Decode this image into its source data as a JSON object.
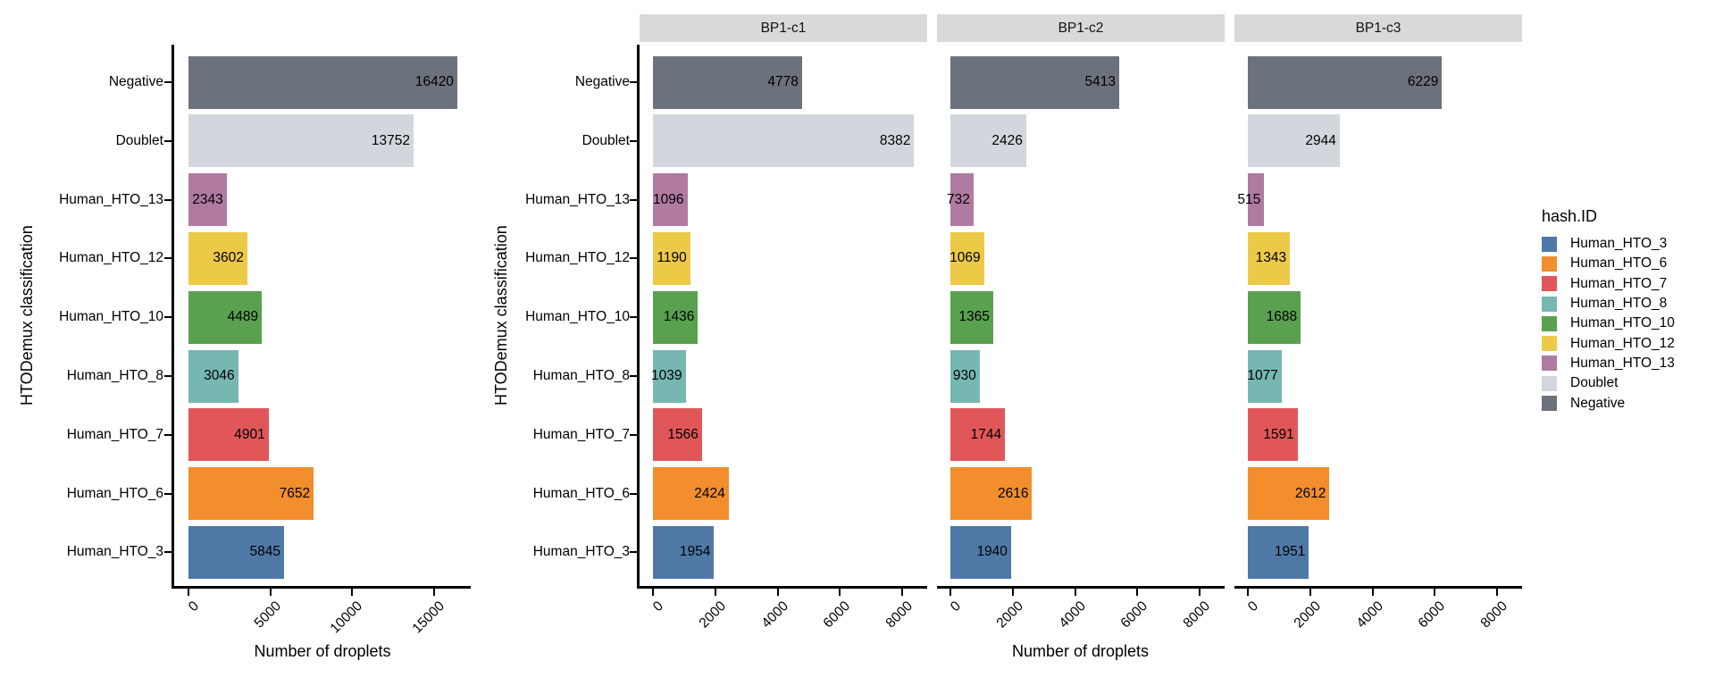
{
  "figure_bg": "#FFFFFF",
  "strip_bg": "#D9D9D9",
  "axis_color": "#000000",
  "text_color": "#000000",
  "palette": {
    "Human_HTO_3": "#4E79A7",
    "Human_HTO_6": "#F28E2B",
    "Human_HTO_7": "#E15759",
    "Human_HTO_8": "#76B7B2",
    "Human_HTO_10": "#59A14F",
    "Human_HTO_12": "#EDC948",
    "Human_HTO_13": "#B07AA1",
    "Doublet": "#D2D7DE",
    "Negative": "#6C727C"
  },
  "chart_data": [
    {
      "type": "bar",
      "orientation": "horizontal",
      "title": "",
      "xlabel": "Number of droplets",
      "ylabel": "HTODemux classification",
      "categories_top_to_bottom": [
        "Negative",
        "Doublet",
        "Human_HTO_13",
        "Human_HTO_12",
        "Human_HTO_10",
        "Human_HTO_8",
        "Human_HTO_7",
        "Human_HTO_6",
        "Human_HTO_3"
      ],
      "values": [
        16420,
        13752,
        2343,
        3602,
        4489,
        3046,
        4901,
        7652,
        5845
      ],
      "bar_labels": [
        "16420",
        "13752",
        "2343",
        "3602",
        "4489",
        "3046",
        "4901",
        "7652",
        "5845"
      ],
      "xticks": [
        0,
        5000,
        10000,
        15000
      ],
      "xlim": [
        -862,
        17241
      ],
      "grid": false,
      "legend_position": "none"
    },
    {
      "type": "bar",
      "orientation": "horizontal",
      "faceted": true,
      "title": "",
      "xlabel": "Number of droplets",
      "ylabel": "HTODemux classification",
      "categories_top_to_bottom": [
        "Negative",
        "Doublet",
        "Human_HTO_13",
        "Human_HTO_12",
        "Human_HTO_10",
        "Human_HTO_8",
        "Human_HTO_7",
        "Human_HTO_6",
        "Human_HTO_3"
      ],
      "facets": [
        {
          "label": "BP1-c1",
          "values": [
            4778,
            8382,
            1096,
            1190,
            1436,
            1039,
            1566,
            2424,
            1954
          ]
        },
        {
          "label": "BP1-c2",
          "values": [
            5413,
            2426,
            732,
            1069,
            1365,
            930,
            1744,
            2616,
            1940
          ]
        },
        {
          "label": "BP1-c3",
          "values": [
            6229,
            2944,
            515,
            1343,
            1688,
            1077,
            1591,
            2612,
            1951
          ]
        }
      ],
      "xticks": [
        0,
        2000,
        4000,
        6000,
        8000
      ],
      "xlim": [
        -440,
        8801
      ],
      "grid": false,
      "legend_position": "right"
    }
  ],
  "legend": {
    "title": "hash.ID",
    "items": [
      {
        "label": "Human_HTO_3",
        "color": "#4E79A7"
      },
      {
        "label": "Human_HTO_6",
        "color": "#F28E2B"
      },
      {
        "label": "Human_HTO_7",
        "color": "#E15759"
      },
      {
        "label": "Human_HTO_8",
        "color": "#76B7B2"
      },
      {
        "label": "Human_HTO_10",
        "color": "#59A14F"
      },
      {
        "label": "Human_HTO_12",
        "color": "#EDC948"
      },
      {
        "label": "Human_HTO_13",
        "color": "#B07AA1"
      },
      {
        "label": "Doublet",
        "color": "#D2D7DE"
      },
      {
        "label": "Negative",
        "color": "#6C727C"
      }
    ]
  }
}
